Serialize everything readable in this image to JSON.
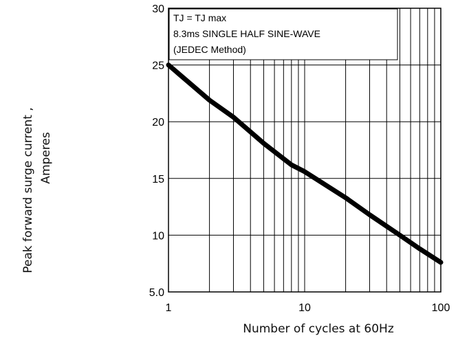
{
  "chart_data": {
    "type": "line",
    "xscale": "log",
    "xlim": [
      1,
      100
    ],
    "ylim": [
      5,
      30
    ],
    "grid": true,
    "xlabel": "Number of cycles at 60Hz",
    "ylabel_line1": "Peak forward surge current ,",
    "ylabel_line2": "Amperes",
    "x_ticks": [
      {
        "value": 1,
        "label": "1"
      },
      {
        "value": 10,
        "label": "10"
      },
      {
        "value": 100,
        "label": "100"
      }
    ],
    "y_ticks": [
      {
        "value": 5,
        "label": "5.0"
      },
      {
        "value": 10,
        "label": "10"
      },
      {
        "value": 15,
        "label": "15"
      },
      {
        "value": 20,
        "label": "20"
      },
      {
        "value": 25,
        "label": "25"
      },
      {
        "value": 30,
        "label": "30"
      }
    ],
    "annotations": [
      "TJ = TJ max",
      "8.3ms SINGLE HALF SINE-WAVE",
      "(JEDEC Method)"
    ],
    "series": [
      {
        "x": [
          1,
          2,
          3,
          5,
          8,
          10,
          20,
          30,
          50,
          70,
          100
        ],
        "y": [
          25,
          21.9,
          20.4,
          18.1,
          16.2,
          15.6,
          13.3,
          11.8,
          10.0,
          8.8,
          7.6
        ]
      }
    ]
  }
}
